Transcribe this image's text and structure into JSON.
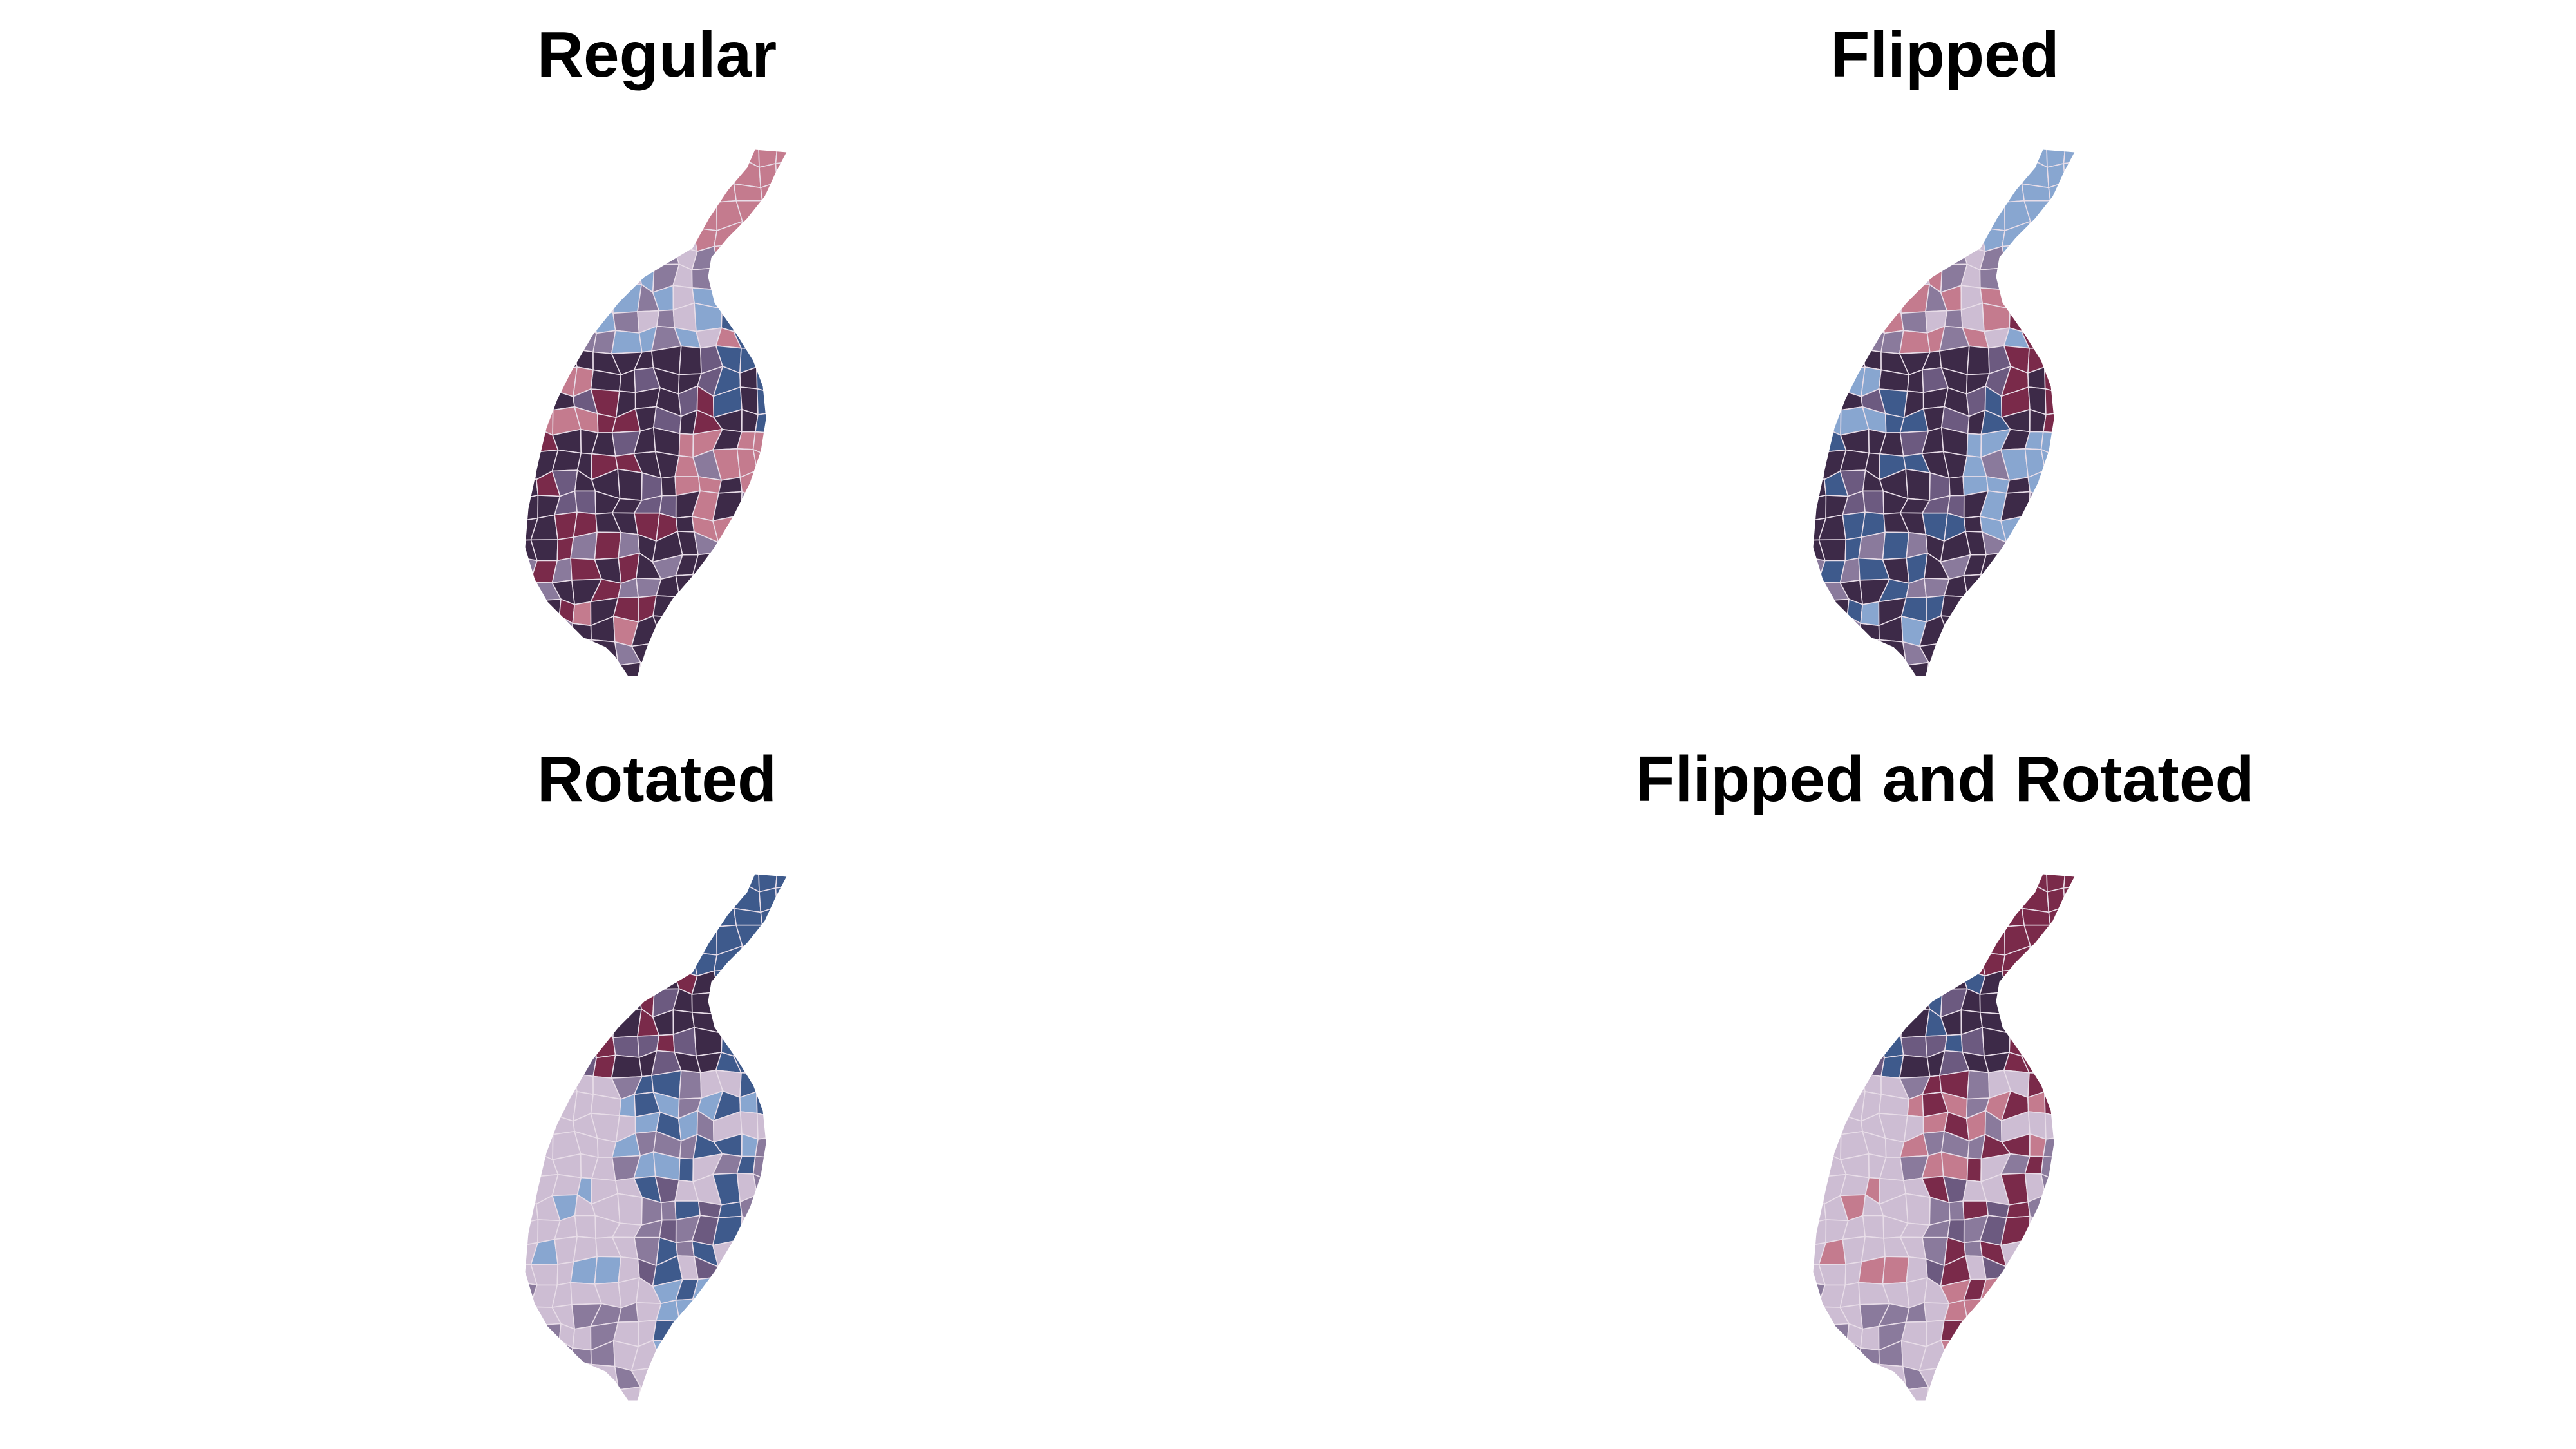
{
  "panels": [
    {
      "title": "Regular",
      "scheme": "regular"
    },
    {
      "title": "Flipped",
      "scheme": "flipped"
    },
    {
      "title": "Rotated",
      "scheme": "rotated"
    },
    {
      "title": "Flipped and Rotated",
      "scheme": "flipped_rotated"
    }
  ],
  "palette": {
    "darkest": "#3d2a48",
    "dark_purple": "#6c5a80",
    "mid_purple": "#8a7a9c",
    "light_lavender": "#cdbdd3",
    "wine": "#7a2a4a",
    "rose": "#c47b8e",
    "navy": "#3e5a8c",
    "light_blue": "#88a6d0"
  },
  "border_color": "#e8dde8"
}
